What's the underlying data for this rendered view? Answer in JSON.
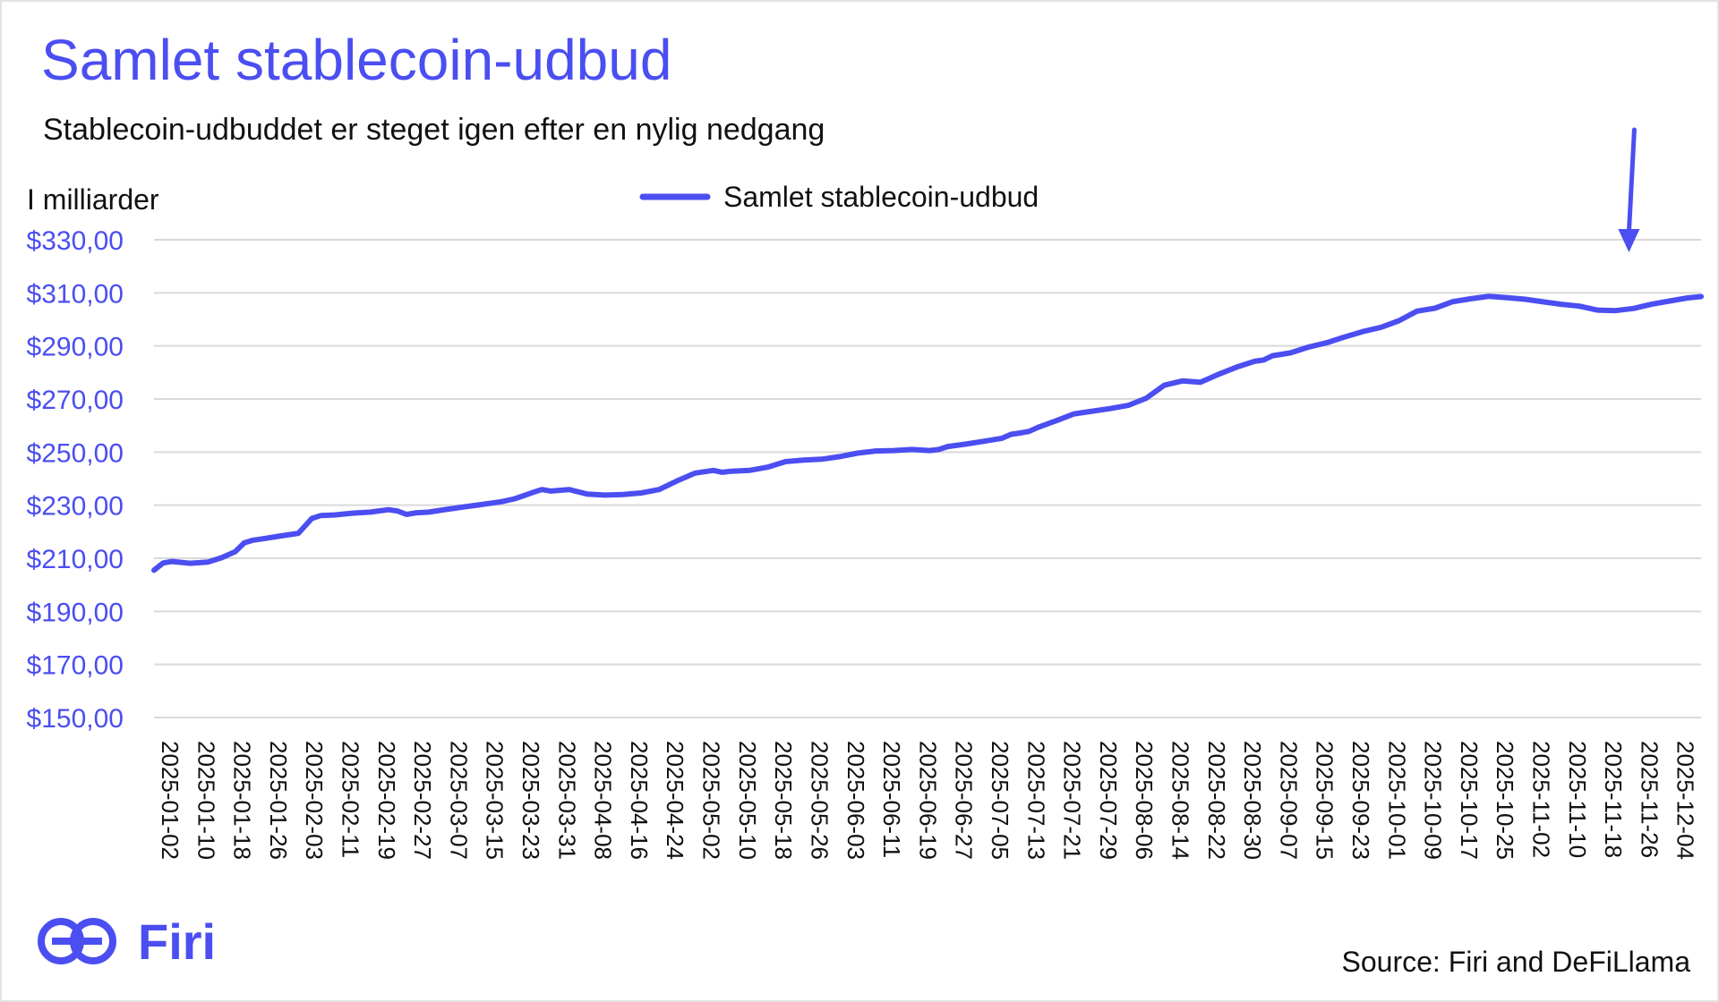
{
  "header": {
    "title": "Samlet stablecoin-udbud",
    "subtitle": "Stablecoin-udbuddet er steget igen efter en nylig nedgang"
  },
  "footer": {
    "brand": "Firi",
    "brand_icon": "firi-logo-icon",
    "source": "Source: Firi and DeFiLlama"
  },
  "colors": {
    "accent": "#4b4ef0",
    "text": "#111111",
    "grid": "#d9d9d9"
  },
  "chart_data": {
    "type": "line",
    "title": "Samlet stablecoin-udbud",
    "subtitle": "Stablecoin-udbuddet er steget igen efter en nylig nedgang",
    "ylabel": "I milliarder",
    "xlabel": "",
    "legend": "top-center",
    "grid": true,
    "ylim": [
      150,
      330
    ],
    "yticks": [
      150,
      170,
      190,
      210,
      230,
      250,
      270,
      290,
      310,
      330
    ],
    "ytick_labels": [
      "$150,00",
      "$170,00",
      "$190,00",
      "$210,00",
      "$230,00",
      "$250,00",
      "$270,00",
      "$290,00",
      "$310,00",
      "$330,00"
    ],
    "xlim": [
      "2025-01-02",
      "2025-12-11"
    ],
    "xtick_labels": [
      "2025-01-02",
      "2025-01-10",
      "2025-01-18",
      "2025-01-26",
      "2025-02-03",
      "2025-02-11",
      "2025-02-19",
      "2025-02-27",
      "2025-03-07",
      "2025-03-15",
      "2025-03-23",
      "2025-03-31",
      "2025-04-08",
      "2025-04-16",
      "2025-04-24",
      "2025-05-02",
      "2025-05-10",
      "2025-05-18",
      "2025-05-26",
      "2025-06-03",
      "2025-06-11",
      "2025-06-19",
      "2025-06-27",
      "2025-07-05",
      "2025-07-13",
      "2025-07-21",
      "2025-07-29",
      "2025-08-06",
      "2025-08-14",
      "2025-08-22",
      "2025-08-30",
      "2025-09-07",
      "2025-09-15",
      "2025-09-23",
      "2025-10-01",
      "2025-10-09",
      "2025-10-17",
      "2025-10-25",
      "2025-11-02",
      "2025-11-10",
      "2025-11-18",
      "2025-11-26",
      "2025-12-04"
    ],
    "series": [
      {
        "name": "Samlet stablecoin-udbud",
        "color": "#4b4ef0",
        "x": [
          "2025-01-02",
          "2025-01-04",
          "2025-01-06",
          "2025-01-10",
          "2025-01-14",
          "2025-01-17",
          "2025-01-20",
          "2025-01-22",
          "2025-01-24",
          "2025-01-26",
          "2025-01-30",
          "2025-02-03",
          "2025-02-06",
          "2025-02-08",
          "2025-02-11",
          "2025-02-15",
          "2025-02-19",
          "2025-02-23",
          "2025-02-25",
          "2025-02-27",
          "2025-03-01",
          "2025-03-04",
          "2025-03-07",
          "2025-03-12",
          "2025-03-15",
          "2025-03-20",
          "2025-03-23",
          "2025-03-27",
          "2025-03-29",
          "2025-03-31",
          "2025-04-04",
          "2025-04-08",
          "2025-04-12",
          "2025-04-16",
          "2025-04-20",
          "2025-04-24",
          "2025-04-28",
          "2025-05-02",
          "2025-05-06",
          "2025-05-08",
          "2025-05-10",
          "2025-05-14",
          "2025-05-18",
          "2025-05-22",
          "2025-05-26",
          "2025-05-30",
          "2025-06-03",
          "2025-06-07",
          "2025-06-11",
          "2025-06-15",
          "2025-06-19",
          "2025-06-23",
          "2025-06-25",
          "2025-06-27",
          "2025-07-01",
          "2025-07-05",
          "2025-07-09",
          "2025-07-11",
          "2025-07-13",
          "2025-07-15",
          "2025-07-17",
          "2025-07-21",
          "2025-07-25",
          "2025-07-29",
          "2025-08-02",
          "2025-08-06",
          "2025-08-10",
          "2025-08-14",
          "2025-08-18",
          "2025-08-22",
          "2025-08-24",
          "2025-08-26",
          "2025-08-30",
          "2025-09-03",
          "2025-09-05",
          "2025-09-07",
          "2025-09-11",
          "2025-09-15",
          "2025-09-19",
          "2025-09-23",
          "2025-09-27",
          "2025-10-01",
          "2025-10-05",
          "2025-10-09",
          "2025-10-13",
          "2025-10-17",
          "2025-10-21",
          "2025-10-25",
          "2025-10-29",
          "2025-11-02",
          "2025-11-06",
          "2025-11-10",
          "2025-11-14",
          "2025-11-18",
          "2025-11-22",
          "2025-11-26",
          "2025-11-30",
          "2025-12-04",
          "2025-12-08",
          "2025-12-11"
        ],
        "values": [
          205.5,
          208.2,
          208.8,
          208.1,
          208.6,
          210.2,
          212.5,
          215.8,
          216.8,
          217.3,
          218.4,
          219.4,
          225.0,
          226.1,
          226.3,
          227.0,
          227.4,
          228.3,
          227.8,
          226.5,
          227.1,
          227.4,
          228.2,
          229.4,
          230.1,
          231.3,
          232.4,
          234.8,
          235.9,
          235.3,
          235.9,
          234.2,
          233.8,
          234.0,
          234.6,
          235.9,
          239.2,
          242.1,
          243.1,
          242.4,
          242.8,
          243.1,
          244.3,
          246.4,
          247.0,
          247.3,
          248.3,
          249.6,
          250.4,
          250.6,
          251.0,
          250.6,
          251.0,
          252.1,
          253.0,
          254.1,
          255.2,
          256.7,
          257.2,
          257.8,
          259.3,
          261.8,
          264.4,
          265.4,
          266.4,
          267.6,
          270.3,
          275.2,
          276.8,
          276.3,
          277.8,
          279.3,
          282.0,
          284.2,
          284.7,
          286.3,
          287.4,
          289.6,
          291.2,
          293.4,
          295.4,
          297.0,
          299.5,
          303.1,
          304.2,
          306.7,
          307.8,
          308.7,
          308.2,
          307.6,
          306.6,
          305.7,
          305.0,
          303.5,
          303.3,
          304.1,
          305.7,
          306.9,
          308.1,
          308.6
        ]
      }
    ],
    "annotations": [
      {
        "type": "arrow",
        "direction": "down",
        "x": "2025-11-25"
      }
    ]
  }
}
